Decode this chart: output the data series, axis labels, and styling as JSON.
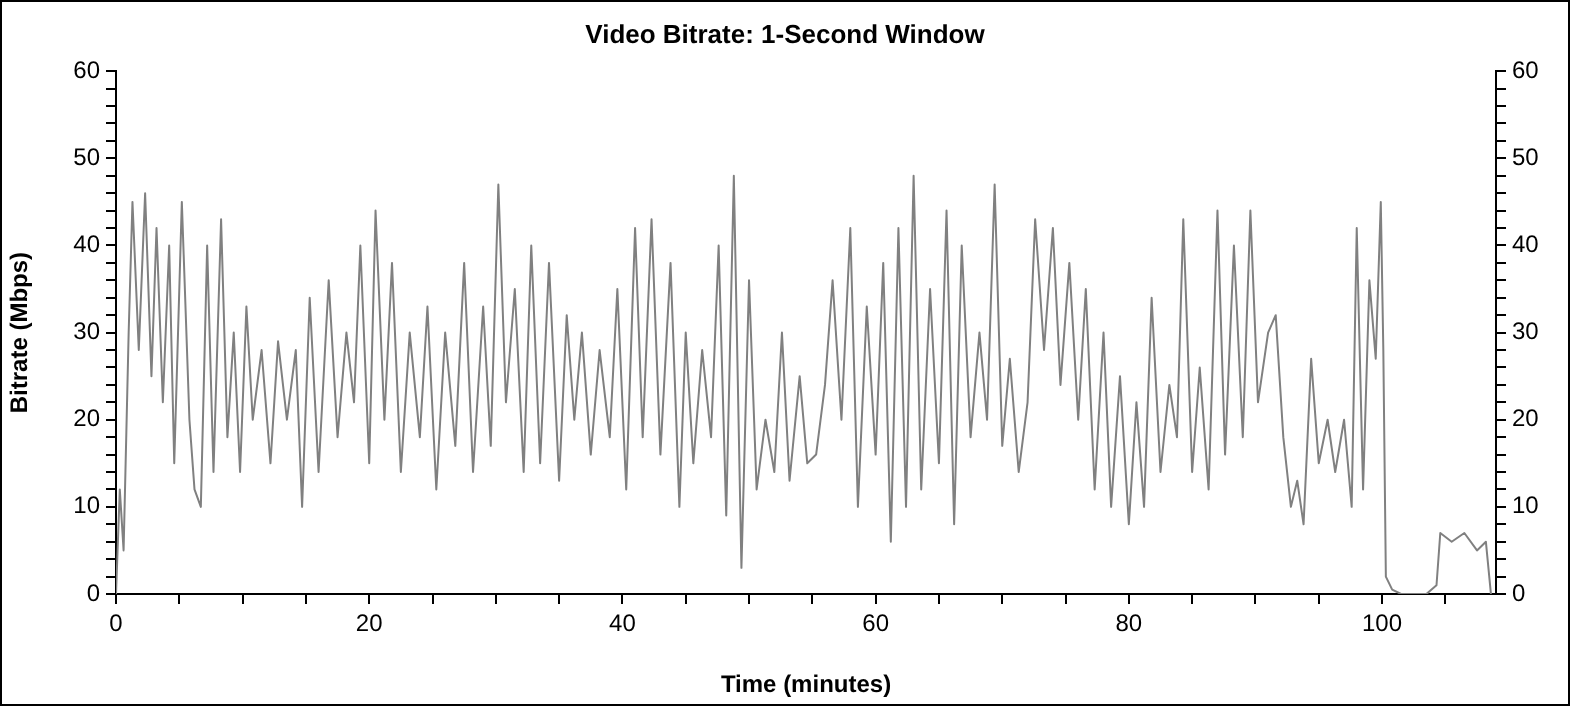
{
  "chart_data": {
    "type": "line",
    "title": "Video Bitrate: 1-Second Window",
    "xlabel": "Time (minutes)",
    "ylabel": "Bitrate (Mbps)",
    "marker": "none",
    "xlim": [
      0,
      109
    ],
    "xticks": [
      0,
      {
        "value": 5,
        "label": null
      },
      {
        "value": 10,
        "label": null
      },
      {
        "value": 15,
        "label": null
      },
      20,
      {
        "value": 25,
        "label": null
      },
      {
        "value": 30,
        "label": null
      },
      {
        "value": 35,
        "label": null
      },
      40,
      {
        "value": 45,
        "label": null
      },
      {
        "value": 50,
        "label": null
      },
      {
        "value": 55,
        "label": null
      },
      60,
      {
        "value": 65,
        "label": null
      },
      {
        "value": 70,
        "label": null
      },
      {
        "value": 75,
        "label": null
      },
      80,
      {
        "value": 85,
        "label": null
      },
      {
        "value": 90,
        "label": null
      },
      {
        "value": 95,
        "label": null
      },
      100,
      {
        "value": 105,
        "label": null
      }
    ],
    "ylim": [
      0,
      60
    ],
    "yticks": [
      0,
      {
        "value": 2,
        "label": null
      },
      {
        "value": 4,
        "label": null
      },
      {
        "value": 6,
        "label": null
      },
      {
        "value": 8,
        "label": null
      },
      10,
      {
        "value": 12,
        "label": null
      },
      {
        "value": 14,
        "label": null
      },
      {
        "value": 16,
        "label": null
      },
      {
        "value": 18,
        "label": null
      },
      20,
      {
        "value": 22,
        "label": null
      },
      {
        "value": 24,
        "label": null
      },
      {
        "value": 26,
        "label": null
      },
      {
        "value": 28,
        "label": null
      },
      30,
      {
        "value": 32,
        "label": null
      },
      {
        "value": 34,
        "label": null
      },
      {
        "value": 36,
        "label": null
      },
      {
        "value": 38,
        "label": null
      },
      40,
      {
        "value": 42,
        "label": null
      },
      {
        "value": 44,
        "label": null
      },
      {
        "value": 46,
        "label": null
      },
      {
        "value": 48,
        "label": null
      },
      50,
      {
        "value": 52,
        "label": null
      },
      {
        "value": 54,
        "label": null
      },
      {
        "value": 56,
        "label": null
      },
      {
        "value": 58,
        "label": null
      },
      60
    ],
    "y2lim": [
      0,
      60
    ],
    "y2ticks": [
      0,
      {
        "value": 2,
        "label": null
      },
      {
        "value": 4,
        "label": null
      },
      {
        "value": 6,
        "label": null
      },
      {
        "value": 8,
        "label": null
      },
      10,
      {
        "value": 12,
        "label": null
      },
      {
        "value": 14,
        "label": null
      },
      {
        "value": 16,
        "label": null
      },
      {
        "value": 18,
        "label": null
      },
      20,
      {
        "value": 22,
        "label": null
      },
      {
        "value": 24,
        "label": null
      },
      {
        "value": 26,
        "label": null
      },
      {
        "value": 28,
        "label": null
      },
      30,
      {
        "value": 32,
        "label": null
      },
      {
        "value": 34,
        "label": null
      },
      {
        "value": 36,
        "label": null
      },
      {
        "value": 38,
        "label": null
      },
      40,
      {
        "value": 42,
        "label": null
      },
      {
        "value": 44,
        "label": null
      },
      {
        "value": 46,
        "label": null
      },
      {
        "value": 48,
        "label": null
      },
      50,
      {
        "value": 52,
        "label": null
      },
      {
        "value": 54,
        "label": null
      },
      {
        "value": 56,
        "label": null
      },
      {
        "value": 58,
        "label": null
      },
      60
    ],
    "series": [
      {
        "color": "#808080",
        "x": [
          0,
          0.3,
          0.6,
          1,
          1.3,
          1.8,
          2.3,
          2.8,
          3.2,
          3.7,
          4.2,
          4.6,
          5.2,
          5.8,
          6.2,
          6.7,
          7.2,
          7.7,
          8.3,
          8.8,
          9.3,
          9.8,
          10.3,
          10.8,
          11.5,
          12.2,
          12.8,
          13.5,
          14.2,
          14.7,
          15.3,
          16,
          16.8,
          17.5,
          18.2,
          18.8,
          19.3,
          20,
          20.5,
          21.2,
          21.8,
          22.5,
          23.2,
          24,
          24.6,
          25.3,
          26,
          26.8,
          27.5,
          28.2,
          29,
          29.6,
          30.2,
          30.8,
          31.5,
          32.2,
          32.8,
          33.5,
          34.2,
          35,
          35.6,
          36.2,
          36.8,
          37.5,
          38.2,
          39,
          39.6,
          40.3,
          41,
          41.6,
          42.3,
          43,
          43.8,
          44.5,
          45,
          45.6,
          46.3,
          47,
          47.6,
          48.2,
          48.8,
          49.4,
          50,
          50.6,
          51.3,
          52,
          52.6,
          53.2,
          54,
          54.6,
          55.3,
          56,
          56.6,
          57.3,
          58,
          58.6,
          59.3,
          60,
          60.6,
          61.2,
          61.8,
          62.4,
          63,
          63.6,
          64.3,
          65,
          65.6,
          66.2,
          66.8,
          67.5,
          68.2,
          68.8,
          69.4,
          70,
          70.6,
          71.3,
          72,
          72.6,
          73.3,
          74,
          74.6,
          75.3,
          76,
          76.6,
          77.3,
          78,
          78.6,
          79.3,
          80,
          80.6,
          81.2,
          81.8,
          82.5,
          83.2,
          83.8,
          84.3,
          85,
          85.6,
          86.3,
          87,
          87.6,
          88.3,
          89,
          89.6,
          90.2,
          91,
          91.6,
          92.2,
          92.8,
          93.3,
          93.8,
          94.4,
          95,
          95.7,
          96.3,
          97,
          97.6,
          98,
          98.5,
          99,
          99.5,
          99.9,
          100.1,
          100.3,
          100.8,
          101.5,
          103.5,
          104.3,
          104.6,
          105.5,
          106.5,
          107.5,
          108.2,
          108.6
        ],
        "values": [
          0,
          12,
          5,
          30,
          45,
          28,
          46,
          25,
          42,
          22,
          40,
          15,
          45,
          20,
          12,
          10,
          40,
          14,
          43,
          18,
          30,
          14,
          33,
          20,
          28,
          15,
          29,
          20,
          28,
          10,
          34,
          14,
          36,
          18,
          30,
          22,
          40,
          15,
          44,
          20,
          38,
          14,
          30,
          18,
          33,
          12,
          30,
          17,
          38,
          14,
          33,
          17,
          47,
          22,
          35,
          14,
          40,
          15,
          38,
          13,
          32,
          20,
          30,
          16,
          28,
          18,
          35,
          12,
          42,
          18,
          43,
          16,
          38,
          10,
          30,
          15,
          28,
          18,
          40,
          9,
          48,
          3,
          36,
          12,
          20,
          14,
          30,
          13,
          25,
          15,
          16,
          24,
          36,
          20,
          42,
          10,
          33,
          16,
          38,
          6,
          42,
          10,
          48,
          12,
          35,
          15,
          44,
          8,
          40,
          18,
          30,
          20,
          47,
          17,
          27,
          14,
          22,
          43,
          28,
          42,
          24,
          38,
          20,
          35,
          12,
          30,
          10,
          25,
          8,
          22,
          10,
          34,
          14,
          24,
          18,
          43,
          14,
          26,
          12,
          44,
          16,
          40,
          18,
          44,
          22,
          30,
          32,
          18,
          10,
          13,
          8,
          27,
          15,
          20,
          14,
          20,
          10,
          42,
          12,
          36,
          27,
          45,
          28,
          2,
          0.5,
          0,
          0,
          1,
          7,
          6,
          7,
          5,
          6,
          0
        ]
      }
    ]
  }
}
